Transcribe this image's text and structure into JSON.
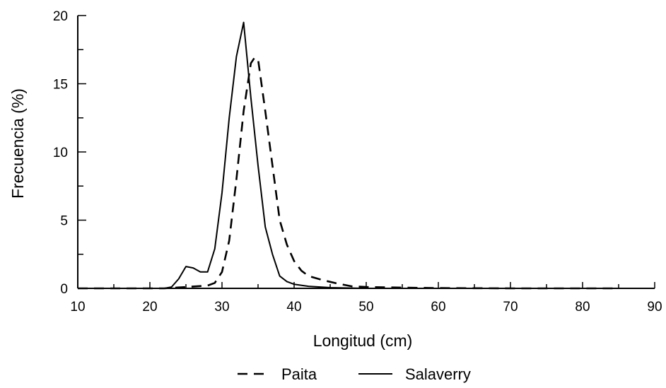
{
  "chart_data": {
    "type": "line",
    "title": "",
    "xlabel": "Longitud (cm)",
    "ylabel": "Frecuencia (%)",
    "xlim": [
      10,
      90
    ],
    "ylim": [
      0,
      20
    ],
    "x_ticks": [
      "10",
      "20",
      "30",
      "40",
      "50",
      "60",
      "70",
      "80",
      "90"
    ],
    "y_ticks": [
      "0",
      "5",
      "10",
      "15",
      "20"
    ],
    "grid": false,
    "legend_position": "bottom-center",
    "series": [
      {
        "name": "Paita",
        "style": "dashed",
        "color": "#000000",
        "x": [
          10,
          22,
          25,
          28,
          29,
          30,
          31,
          32,
          33,
          34,
          34.5,
          35,
          36,
          37,
          38,
          39,
          40,
          41,
          42,
          44,
          46,
          48,
          50,
          55,
          60,
          70,
          80,
          85
        ],
        "y": [
          0,
          0,
          0.1,
          0.2,
          0.4,
          1.2,
          3.5,
          8,
          13,
          16.5,
          16.9,
          16.8,
          13,
          9,
          5,
          3.2,
          2.0,
          1.3,
          0.9,
          0.6,
          0.35,
          0.15,
          0.1,
          0.05,
          0.02,
          0,
          0,
          0
        ]
      },
      {
        "name": "Salaverry",
        "style": "solid",
        "color": "#000000",
        "x": [
          10,
          20,
          22,
          23,
          24,
          25,
          26,
          27,
          28,
          29,
          30,
          31,
          32,
          33,
          34,
          35,
          36,
          37,
          38,
          39,
          40,
          42,
          45,
          50,
          60,
          70,
          80,
          85
        ],
        "y": [
          0,
          0,
          0,
          0.1,
          0.7,
          1.6,
          1.5,
          1.2,
          1.2,
          2.9,
          7,
          12.5,
          17,
          19.5,
          14,
          9,
          4.5,
          2.5,
          0.9,
          0.5,
          0.3,
          0.15,
          0.05,
          0,
          0,
          0,
          0,
          0
        ]
      }
    ]
  }
}
